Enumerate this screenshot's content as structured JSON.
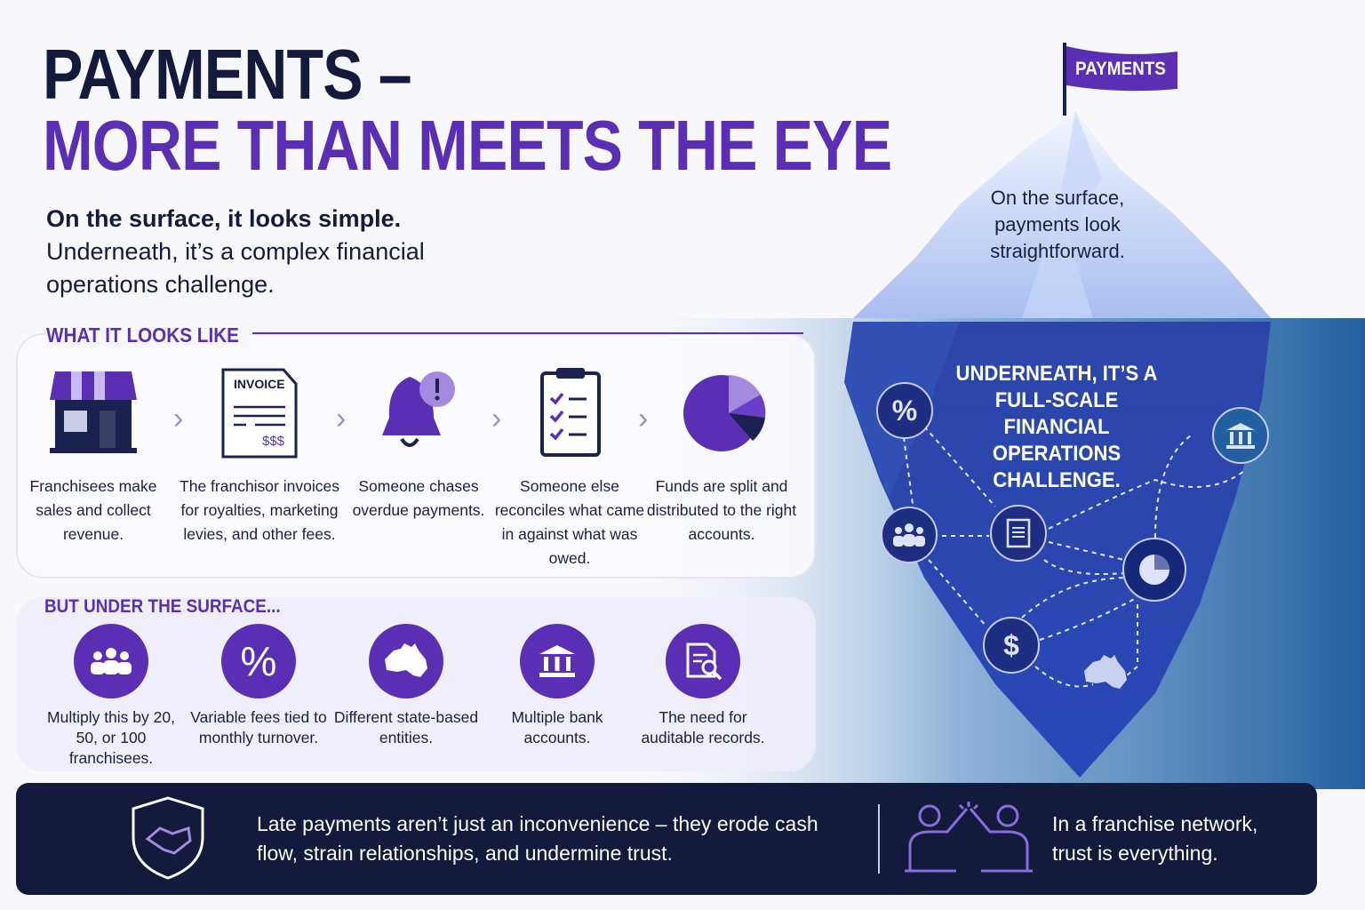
{
  "title": {
    "line1": "PAYMENTS –",
    "line2": "MORE THAN MEETS THE EYE"
  },
  "intro": {
    "bold": "On the surface, it looks simple.",
    "text": "Underneath, it’s a complex financial operations challenge."
  },
  "flag_label": "PAYMENTS",
  "iceberg": {
    "surface_text": "On the surface, payments look straightforward.",
    "underneath_text": "UNDERNEATH, IT’S A FULL-SCALE FINANCIAL OPERATIONS CHALLENGE.",
    "nodes": [
      "percent-icon",
      "people-icon",
      "document-icon",
      "bank-icon",
      "pie-chart-icon",
      "dollar-icon",
      "australia-map-icon"
    ],
    "dollar_glyph": "$",
    "percent_glyph": "%"
  },
  "what_it_looks_like": {
    "heading": "WHAT IT LOOKS LIKE",
    "steps": [
      {
        "icon": "storefront-icon",
        "text": "Franchisees make sales and collect revenue."
      },
      {
        "icon": "invoice-icon",
        "text": "The franchisor invoices for royalties, marketing levies, and other fees.",
        "icon_label": "INVOICE",
        "icon_amount": "$$$"
      },
      {
        "icon": "bell-alert-icon",
        "text": "Someone chases overdue payments."
      },
      {
        "icon": "checklist-icon",
        "text": "Someone else reconciles what came in against what was owed."
      },
      {
        "icon": "pie-chart-icon",
        "text": "Funds are split and distributed to the right accounts."
      }
    ]
  },
  "under_surface": {
    "heading": "BUT UNDER THE SURFACE...",
    "items": [
      {
        "icon": "people-icon",
        "text": "Multiply this by 20, 50, or 100 franchisees."
      },
      {
        "icon": "percent-icon",
        "text": "Variable fees tied to monthly turnover."
      },
      {
        "icon": "australia-map-icon",
        "text": "Different state-based entities."
      },
      {
        "icon": "bank-icon",
        "text": "Multiple bank accounts."
      },
      {
        "icon": "document-search-icon",
        "text": "The need for auditable records."
      }
    ]
  },
  "bottom": {
    "left_text": "Late payments aren’t just an inconvenience – they erode cash flow, strain relationships, and undermine trust.",
    "right_text": "In a franchise network, trust is everything."
  },
  "colors": {
    "navy": "#131a3c",
    "purple": "#5a2fb3",
    "light_purple": "#a38ae0",
    "water": "#1f4f94"
  }
}
